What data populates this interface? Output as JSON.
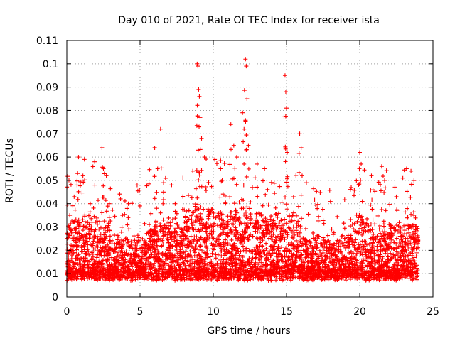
{
  "chart_data": {
    "type": "scatter",
    "title": "Day 010 of 2021, Rate Of TEC Index for receiver ista",
    "xlabel": "GPS time / hours",
    "ylabel": "ROTI / TECUs",
    "xlim": [
      0,
      25
    ],
    "ylim": [
      0,
      0.11
    ],
    "xticks": [
      0,
      5,
      10,
      15,
      20,
      25
    ],
    "xtick_labels": [
      "0",
      "5",
      "10",
      "15",
      "20",
      "25"
    ],
    "yticks": [
      0,
      0.01,
      0.02,
      0.03,
      0.04,
      0.05,
      0.06,
      0.07,
      0.08,
      0.09,
      0.1,
      0.11
    ],
    "ytick_labels": [
      "0",
      "0.01",
      "0.02",
      "0.03",
      "0.04",
      "0.05",
      "0.06",
      "0.07",
      "0.08",
      "0.09",
      "0.1",
      "0.11"
    ],
    "grid": true,
    "marker": "+",
    "color": "#ff0000",
    "series": [
      {
        "name": "ROTI",
        "note": "dense band mostly 0.005–0.03 TECU/min across 0–24 h; listed points are representative peaks",
        "points": [
          [
            0.2,
            0.035
          ],
          [
            0.5,
            0.043
          ],
          [
            0.7,
            0.048
          ],
          [
            0.8,
            0.06
          ],
          [
            1.1,
            0.052
          ],
          [
            1.2,
            0.059
          ],
          [
            1.6,
            0.04
          ],
          [
            1.9,
            0.058
          ],
          [
            2.4,
            0.064
          ],
          [
            2.5,
            0.055
          ],
          [
            2.7,
            0.052
          ],
          [
            2.9,
            0.04
          ],
          [
            3.8,
            0.035
          ],
          [
            4.2,
            0.04
          ],
          [
            6.0,
            0.064
          ],
          [
            6.2,
            0.055
          ],
          [
            6.4,
            0.072
          ],
          [
            6.6,
            0.045
          ],
          [
            7.4,
            0.04
          ],
          [
            8.6,
            0.054
          ],
          [
            8.9,
            0.1
          ],
          [
            8.95,
            0.099
          ],
          [
            9.0,
            0.089
          ],
          [
            9.05,
            0.086
          ],
          [
            9.1,
            0.077
          ],
          [
            9.2,
            0.068
          ],
          [
            9.4,
            0.06
          ],
          [
            10.5,
            0.055
          ],
          [
            11.2,
            0.074
          ],
          [
            11.4,
            0.065
          ],
          [
            11.6,
            0.06
          ],
          [
            12.0,
            0.079
          ],
          [
            12.1,
            0.072
          ],
          [
            12.2,
            0.102
          ],
          [
            12.25,
            0.099
          ],
          [
            12.3,
            0.085
          ],
          [
            12.4,
            0.065
          ],
          [
            13.0,
            0.057
          ],
          [
            13.5,
            0.055
          ],
          [
            14.9,
            0.095
          ],
          [
            14.95,
            0.088
          ],
          [
            15.0,
            0.081
          ],
          [
            15.05,
            0.062
          ],
          [
            15.9,
            0.07
          ],
          [
            16.0,
            0.064
          ],
          [
            20.0,
            0.062
          ],
          [
            20.1,
            0.057
          ],
          [
            20.8,
            0.052
          ],
          [
            21.5,
            0.056
          ],
          [
            21.7,
            0.05
          ],
          [
            22.5,
            0.043
          ],
          [
            23.2,
            0.055
          ],
          [
            23.5,
            0.054
          ],
          [
            23.7,
            0.035
          ]
        ]
      }
    ]
  }
}
